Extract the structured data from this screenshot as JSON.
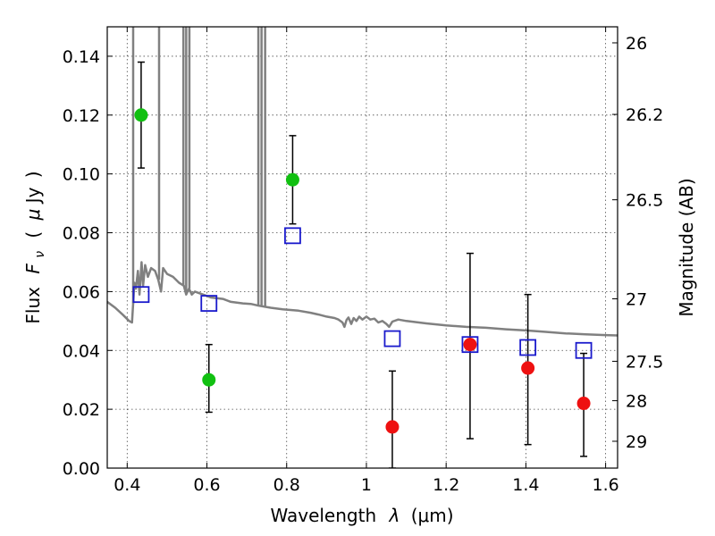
{
  "chart_data": {
    "type": "scatter",
    "title": "",
    "xlabel_text": "Wavelength",
    "xlabel_symbol": "λ",
    "xlabel_unit": "(μm)",
    "ylabel_text": "Flux",
    "ylabel_symbol": "F",
    "ylabel_subscript": "ν",
    "ylabel_unit_open": "(",
    "ylabel_unit_mu": "μ",
    "ylabel_unit_rest": "Jy",
    "ylabel_unit_close": ")",
    "y2label": "Magnitude (AB)",
    "xlim": [
      0.35,
      1.63
    ],
    "ylim": [
      0.0,
      0.15
    ],
    "grid": true,
    "x_ticks": [
      {
        "value": 0.4,
        "label": "0.4"
      },
      {
        "value": 0.6,
        "label": "0.6"
      },
      {
        "value": 0.8,
        "label": "0.8"
      },
      {
        "value": 1.0,
        "label": "1"
      },
      {
        "value": 1.2,
        "label": "1.2"
      },
      {
        "value": 1.4,
        "label": "1.4"
      },
      {
        "value": 1.6,
        "label": "1.6"
      }
    ],
    "y_ticks": [
      {
        "value": 0.0,
        "label": "0.00"
      },
      {
        "value": 0.02,
        "label": "0.02"
      },
      {
        "value": 0.04,
        "label": "0.04"
      },
      {
        "value": 0.06,
        "label": "0.06"
      },
      {
        "value": 0.08,
        "label": "0.08"
      },
      {
        "value": 0.1,
        "label": "0.10"
      },
      {
        "value": 0.12,
        "label": "0.12"
      },
      {
        "value": 0.14,
        "label": "0.14"
      }
    ],
    "y2_ticks": [
      {
        "mag": 26,
        "label": "26"
      },
      {
        "mag": 26.2,
        "label": "26.2"
      },
      {
        "mag": 26.5,
        "label": "26.5"
      },
      {
        "mag": 27,
        "label": "27"
      },
      {
        "mag": 27.5,
        "label": "27.5"
      },
      {
        "mag": 28,
        "label": "28"
      },
      {
        "mag": 29,
        "label": "29"
      }
    ],
    "series": [
      {
        "kind": "line",
        "color": "#808080",
        "points": [
          [
            0.35,
            0.0565
          ],
          [
            0.37,
            0.0545
          ],
          [
            0.39,
            0.052
          ],
          [
            0.405,
            0.05
          ],
          [
            0.412,
            0.0495
          ],
          [
            0.415,
            0.056
          ],
          [
            0.418,
            0.063
          ],
          [
            0.422,
            0.061
          ],
          [
            0.427,
            0.067
          ],
          [
            0.431,
            0.059
          ],
          [
            0.436,
            0.07
          ],
          [
            0.44,
            0.062
          ],
          [
            0.445,
            0.069
          ],
          [
            0.452,
            0.065
          ],
          [
            0.46,
            0.068
          ],
          [
            0.47,
            0.067
          ],
          [
            0.478,
            0.064
          ],
          [
            0.485,
            0.06
          ],
          [
            0.49,
            0.068
          ],
          [
            0.5,
            0.066
          ],
          [
            0.515,
            0.065
          ],
          [
            0.53,
            0.063
          ],
          [
            0.542,
            0.062
          ],
          [
            0.548,
            0.059
          ],
          [
            0.555,
            0.061
          ],
          [
            0.562,
            0.059
          ],
          [
            0.57,
            0.06
          ],
          [
            0.59,
            0.059
          ],
          [
            0.61,
            0.058
          ],
          [
            0.64,
            0.0575
          ],
          [
            0.66,
            0.0565
          ],
          [
            0.69,
            0.056
          ],
          [
            0.71,
            0.0558
          ],
          [
            0.73,
            0.0552
          ],
          [
            0.76,
            0.0545
          ],
          [
            0.79,
            0.054
          ],
          [
            0.83,
            0.0535
          ],
          [
            0.86,
            0.0528
          ],
          [
            0.88,
            0.0522
          ],
          [
            0.9,
            0.0515
          ],
          [
            0.92,
            0.051
          ],
          [
            0.93,
            0.0505
          ],
          [
            0.94,
            0.0495
          ],
          [
            0.945,
            0.048
          ],
          [
            0.95,
            0.0503
          ],
          [
            0.955,
            0.0512
          ],
          [
            0.962,
            0.049
          ],
          [
            0.968,
            0.051
          ],
          [
            0.975,
            0.05
          ],
          [
            0.982,
            0.0515
          ],
          [
            0.99,
            0.0505
          ],
          [
            1.0,
            0.0515
          ],
          [
            1.01,
            0.0505
          ],
          [
            1.02,
            0.0508
          ],
          [
            1.03,
            0.0495
          ],
          [
            1.04,
            0.05
          ],
          [
            1.05,
            0.049
          ],
          [
            1.057,
            0.048
          ],
          [
            1.065,
            0.0498
          ],
          [
            1.08,
            0.0505
          ],
          [
            1.1,
            0.05
          ],
          [
            1.15,
            0.0492
          ],
          [
            1.2,
            0.0485
          ],
          [
            1.25,
            0.048
          ],
          [
            1.3,
            0.0477
          ],
          [
            1.35,
            0.0472
          ],
          [
            1.4,
            0.0468
          ],
          [
            1.45,
            0.0463
          ],
          [
            1.5,
            0.0458
          ],
          [
            1.55,
            0.0455
          ],
          [
            1.6,
            0.0452
          ],
          [
            1.63,
            0.0451
          ]
        ],
        "spikes": [
          {
            "x": 0.415,
            "base": 0.056
          },
          {
            "x": 0.48,
            "base": 0.064
          },
          {
            "x": 0.541,
            "base": 0.062
          },
          {
            "x": 0.548,
            "base": 0.06
          },
          {
            "x": 0.556,
            "base": 0.061
          },
          {
            "x": 0.729,
            "base": 0.055
          },
          {
            "x": 0.737,
            "base": 0.055
          },
          {
            "x": 0.746,
            "base": 0.055
          }
        ]
      },
      {
        "kind": "points",
        "marker": "circle",
        "color": "#11c011",
        "points": [
          {
            "x": 0.435,
            "y": 0.12,
            "ylo": 0.102,
            "yhi": 0.138
          },
          {
            "x": 0.605,
            "y": 0.03,
            "ylo": 0.019,
            "yhi": 0.042
          },
          {
            "x": 0.815,
            "y": 0.098,
            "ylo": 0.083,
            "yhi": 0.113
          }
        ]
      },
      {
        "kind": "points",
        "marker": "circle",
        "color": "#ee1111",
        "points": [
          {
            "x": 1.065,
            "y": 0.014,
            "ylo": 0.0,
            "yhi": 0.033
          },
          {
            "x": 1.26,
            "y": 0.042,
            "ylo": 0.01,
            "yhi": 0.073
          },
          {
            "x": 1.405,
            "y": 0.034,
            "ylo": 0.008,
            "yhi": 0.059
          },
          {
            "x": 1.545,
            "y": 0.022,
            "ylo": 0.004,
            "yhi": 0.039
          }
        ]
      },
      {
        "kind": "points",
        "marker": "square-open",
        "color": "#1a1acc",
        "points": [
          {
            "x": 0.435,
            "y": 0.059
          },
          {
            "x": 0.605,
            "y": 0.056
          },
          {
            "x": 0.815,
            "y": 0.079
          },
          {
            "x": 1.065,
            "y": 0.044
          },
          {
            "x": 1.26,
            "y": 0.042
          },
          {
            "x": 1.405,
            "y": 0.041
          },
          {
            "x": 1.545,
            "y": 0.04
          }
        ]
      }
    ]
  }
}
